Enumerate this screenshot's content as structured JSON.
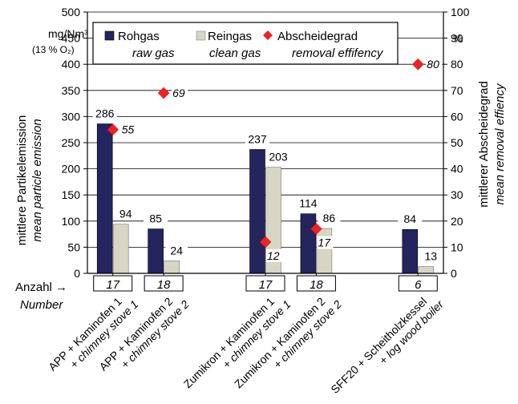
{
  "chart_data": {
    "type": "bar",
    "colors": {
      "raw": "#24245e",
      "clean": "#d6d6c2",
      "removal": "#ee2222"
    },
    "categories": [
      {
        "line1": "APP + Kaminofen 1",
        "line2": "+ chimney stove 1",
        "count": "17"
      },
      {
        "line1": "APP + Kaminofen 2",
        "line2": "+ chimney stove 2",
        "count": "18"
      },
      {
        "line1": "Zumikron + Kaminofen 1",
        "line2": "+ chimney stove 1",
        "count": "17"
      },
      {
        "line1": "Zumikron + Kaminofen 2",
        "line2": "+ chimney stove 2",
        "count": "18"
      },
      {
        "line1": "SFF20 + Scheitholzkessel",
        "line2": "+ log wood boiler",
        "count": "6"
      }
    ],
    "series": [
      {
        "name": "Rohgas",
        "name_en": "raw gas",
        "values": [
          286,
          85,
          237,
          114,
          84
        ]
      },
      {
        "name": "Reingas",
        "name_en": "clean gas",
        "values": [
          94,
          24,
          203,
          86,
          13
        ]
      }
    ],
    "removal": {
      "name": "Abscheidegrad",
      "name_en": "removal effifency",
      "values": [
        55,
        69,
        12,
        17,
        80
      ]
    },
    "left_axis": {
      "label_de": "mittlere Partikelemission",
      "label_en": "mean particle emission",
      "unit_line1": "mg/Nm³",
      "unit_line2": "(13 % O₂)",
      "range": [
        0,
        500
      ],
      "ticks": [
        "0",
        "50",
        "100",
        "150",
        "200",
        "250",
        "300",
        "350",
        "400",
        "450",
        "500"
      ]
    },
    "right_axis": {
      "label_de": "mittlerer Abscheidegrad",
      "label_en": "mean removal effiency",
      "unit": "%",
      "range": [
        0,
        100
      ],
      "ticks": [
        "0",
        "10",
        "20",
        "30",
        "40",
        "50",
        "60",
        "70",
        "80",
        "90",
        "100"
      ]
    },
    "count_label_de": "Anzahl →",
    "count_label_en": "Number",
    "legend_position": "top",
    "grid": true
  }
}
